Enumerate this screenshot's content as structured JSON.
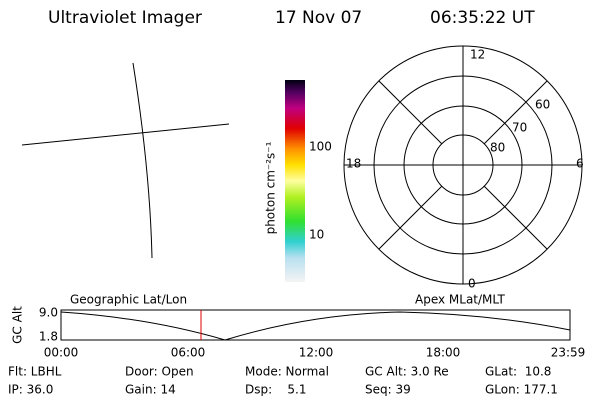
{
  "header": {
    "title": "Ultraviolet Imager",
    "date": "17 Nov 07",
    "time": "06:35:22 UT"
  },
  "colorbar": {
    "label": "photon cm⁻²s⁻¹",
    "ticks": [
      "100",
      "10"
    ]
  },
  "polar": {
    "mlt_labels": [
      "12",
      "18",
      "6",
      "0"
    ],
    "lat_labels": [
      "60",
      "70",
      "80"
    ]
  },
  "orbit_plot": {
    "left_label": "Geographic Lat/Lon",
    "right_label": "Apex MLat/MLT",
    "y_label": "GC Alt",
    "y_ticks": [
      "9.0",
      "1.8"
    ],
    "x_ticks": [
      "00:00",
      "06:00",
      "12:00",
      "18:00",
      "23:59"
    ]
  },
  "status": {
    "rows": [
      [
        "Flt: LBHL",
        "Door: Open",
        "Mode: Normal",
        "GC Alt: 3.0 Re",
        "GLat:  10.8"
      ],
      [
        "IP: 36.0",
        "Gain: 14",
        "Dsp:    5.1",
        "Seq: 39",
        "GLon: 177.1"
      ]
    ]
  }
}
